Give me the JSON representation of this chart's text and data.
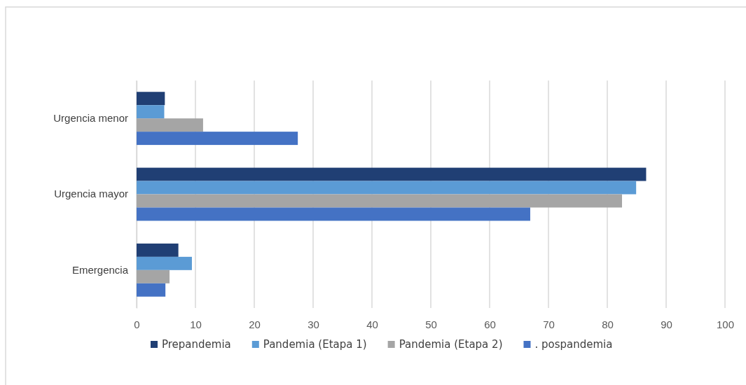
{
  "chart_data": {
    "type": "bar",
    "orientation": "horizontal",
    "categories": [
      "Urgencia menor",
      "Urgencia mayor",
      "Emergencia"
    ],
    "series": [
      {
        "name": "Prepandemia",
        "color": "#203f74",
        "values": [
          4.8,
          86.6,
          7.1
        ]
      },
      {
        "name": "Pandemia (Etapa 1)",
        "color": "#5b9bd5",
        "values": [
          4.7,
          84.9,
          9.4
        ]
      },
      {
        "name": "Pandemia (Etapa 2)",
        "color": "#a5a5a5",
        "values": [
          11.3,
          82.5,
          5.6
        ]
      },
      {
        "name": ". pospandemia",
        "color": "#4472c4",
        "values": [
          27.4,
          66.9,
          4.9
        ]
      }
    ],
    "xlim": [
      0,
      100
    ],
    "xticks": [
      0,
      10,
      20,
      30,
      40,
      50,
      60,
      70,
      80,
      90,
      100
    ],
    "grid": "x",
    "legend": "bottom"
  }
}
